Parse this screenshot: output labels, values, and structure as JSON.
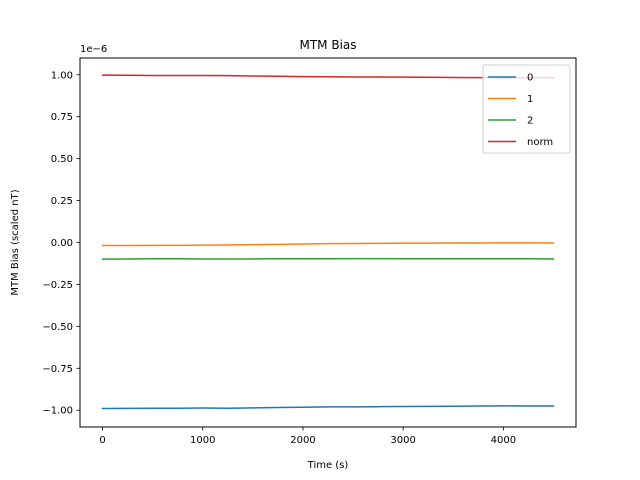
{
  "chart_data": {
    "type": "line",
    "title": "MTM Bias",
    "xlabel": "Time (s)",
    "ylabel": "MTM Bias (scaled nT)",
    "y_offset_label": "1e−6",
    "xlim": [
      -225,
      4725
    ],
    "ylim": [
      -1.1,
      1.1
    ],
    "y_scale_factor": 1e-06,
    "xticks": [
      0,
      1000,
      2000,
      3000,
      4000
    ],
    "xtick_labels": [
      "0",
      "1000",
      "2000",
      "3000",
      "4000"
    ],
    "yticks": [
      -1.0,
      -0.75,
      -0.5,
      -0.25,
      0.0,
      0.25,
      0.5,
      0.75,
      1.0
    ],
    "ytick_labels": [
      "−1.00",
      "−0.75",
      "−0.50",
      "−0.25",
      "0.00",
      "0.25",
      "0.50",
      "0.75",
      "1.00"
    ],
    "grid": false,
    "legend_position": "top-right",
    "x": [
      0,
      250,
      500,
      750,
      1000,
      1250,
      1500,
      1750,
      2000,
      2250,
      2500,
      2750,
      3000,
      3250,
      3500,
      3750,
      4000,
      4250,
      4500
    ],
    "series": [
      {
        "name": "0",
        "color": "#1f77b4",
        "values": [
          -0.99,
          -0.989,
          -0.988,
          -0.988,
          -0.987,
          -0.988,
          -0.986,
          -0.984,
          -0.982,
          -0.98,
          -0.98,
          -0.979,
          -0.978,
          -0.977,
          -0.976,
          -0.975,
          -0.974,
          -0.975,
          -0.975
        ]
      },
      {
        "name": "1",
        "color": "#ff7f0e",
        "values": [
          -0.018,
          -0.018,
          -0.017,
          -0.017,
          -0.016,
          -0.015,
          -0.013,
          -0.011,
          -0.009,
          -0.007,
          -0.006,
          -0.005,
          -0.004,
          -0.004,
          -0.003,
          -0.003,
          -0.002,
          -0.002,
          -0.003
        ]
      },
      {
        "name": "2",
        "color": "#2ca02c",
        "values": [
          -0.099,
          -0.098,
          -0.097,
          -0.097,
          -0.098,
          -0.098,
          -0.098,
          -0.097,
          -0.097,
          -0.097,
          -0.096,
          -0.096,
          -0.097,
          -0.097,
          -0.097,
          -0.097,
          -0.097,
          -0.097,
          -0.098
        ]
      },
      {
        "name": "norm",
        "color": "#d62728",
        "values": [
          0.998,
          0.997,
          0.996,
          0.996,
          0.996,
          0.995,
          0.993,
          0.991,
          0.989,
          0.988,
          0.987,
          0.987,
          0.986,
          0.985,
          0.984,
          0.983,
          0.982,
          0.982,
          0.983
        ]
      }
    ]
  }
}
